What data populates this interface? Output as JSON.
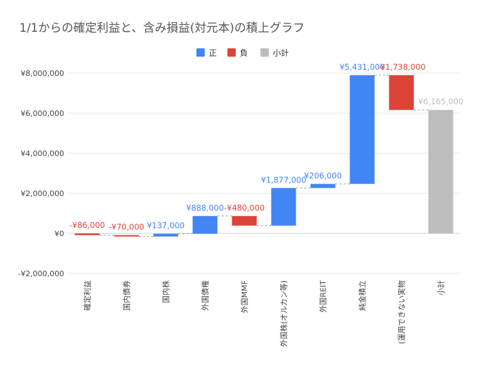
{
  "chart_data": {
    "type": "waterfall",
    "title": "1/1からの確定利益と、含み損益(対元本)の積上グラフ",
    "legend": {
      "placement": "top-center",
      "items": [
        {
          "label": "正",
          "color": "#4285f4"
        },
        {
          "label": "負",
          "color": "#db4437"
        },
        {
          "label": "小計",
          "color": "#bdbdbd"
        }
      ]
    },
    "y_axis": {
      "min": -2000000,
      "max": 8000000,
      "ticks": [
        -2000000,
        0,
        2000000,
        4000000,
        6000000,
        8000000
      ],
      "tick_labels": [
        "-¥2,000,000",
        "¥0",
        "¥2,000,000",
        "¥4,000,000",
        "¥6,000,000",
        "¥8,000,000"
      ],
      "gridlines": true
    },
    "categories": [
      "確定利益",
      "国内債券",
      "国内株",
      "外国債権",
      "外国MMF",
      "外国株(オルカン等)",
      "外国REIT",
      "純金積立",
      "(運用できない実物",
      "小計"
    ],
    "bars": [
      {
        "category": "確定利益",
        "kind": "negative",
        "start": 0,
        "end": -86000,
        "label": "-¥86,000"
      },
      {
        "category": "国内債券",
        "kind": "negative",
        "start": -86000,
        "end": -156000,
        "label": "-¥70,000"
      },
      {
        "category": "国内株",
        "kind": "positive",
        "start": -156000,
        "end": -19000,
        "label": "¥137,000"
      },
      {
        "category": "外国債権",
        "kind": "positive",
        "start": -19000,
        "end": 869000,
        "label": "¥888,000"
      },
      {
        "category": "外国MMF",
        "kind": "negative",
        "start": 869000,
        "end": 389000,
        "label": "-¥480,000"
      },
      {
        "category": "外国株(オルカン等)",
        "kind": "positive",
        "start": 389000,
        "end": 2266000,
        "label": "¥1,877,000"
      },
      {
        "category": "外国REIT",
        "kind": "positive",
        "start": 2266000,
        "end": 2472000,
        "label": "¥206,000"
      },
      {
        "category": "純金積立",
        "kind": "positive",
        "start": 2472000,
        "end": 7903000,
        "label": "¥5,431,000"
      },
      {
        "category": "(運用できない実物",
        "kind": "negative",
        "start": 7903000,
        "end": 6165000,
        "label": "-¥1,738,000"
      },
      {
        "category": "小計",
        "kind": "subtotal",
        "start": 0,
        "end": 6165000,
        "label": "¥6,165,000"
      }
    ],
    "colors": {
      "positive": "#4285f4",
      "negative": "#db4437",
      "subtotal": "#bdbdbd",
      "grid": "#e6e6e6",
      "axis_text": "#444444",
      "connector": "#9e9e9e"
    }
  }
}
